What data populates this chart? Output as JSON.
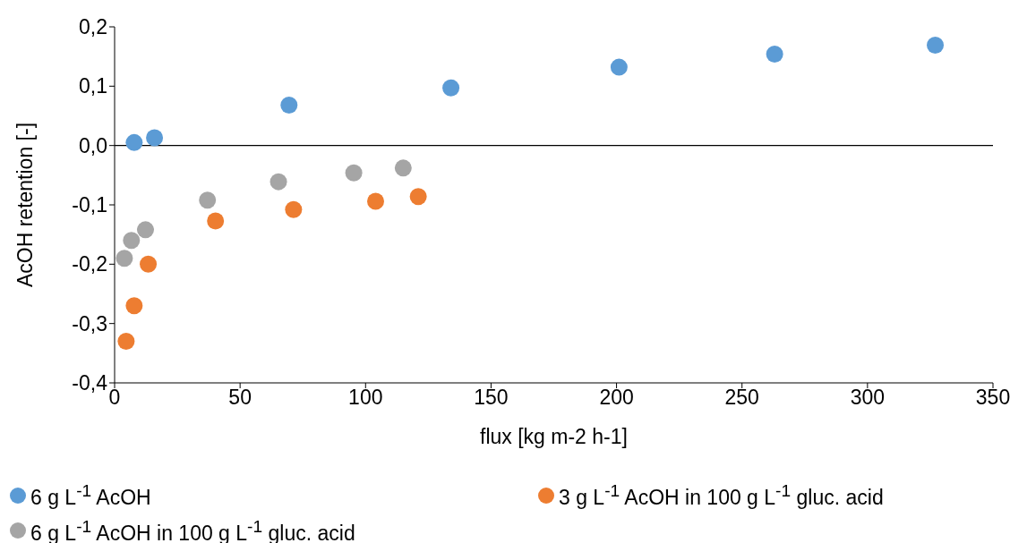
{
  "chart_data": {
    "type": "scatter",
    "xlabel": "flux [kg m-2 h-1]",
    "ylabel": "AcOH retention [-]",
    "xlim": [
      0,
      350
    ],
    "xticks": [
      0,
      50,
      100,
      150,
      200,
      250,
      300,
      350
    ],
    "ylim": [
      -0.4,
      0.2
    ],
    "yticks": [
      {
        "value": -0.4,
        "label": "-0,4"
      },
      {
        "value": -0.3,
        "label": "-0,3"
      },
      {
        "value": -0.2,
        "label": "-0,2"
      },
      {
        "value": -0.1,
        "label": "-0,1"
      },
      {
        "value": 0,
        "label": "0,0"
      },
      {
        "value": 0.1,
        "label": "0,1"
      },
      {
        "value": 0.2,
        "label": "0,2"
      }
    ],
    "grid": false,
    "legend": "bottom",
    "marker": "circle",
    "ref_lines": [
      {
        "axis": "y",
        "value": 0,
        "color": "#000000"
      }
    ],
    "series": [
      {
        "name": "6 g L$^{-1}$  AcOH",
        "color": "#5b9bd5",
        "x": [
          7.8,
          15.9,
          69.5,
          134,
          201,
          263,
          327
        ],
        "values": [
          0.005,
          0.013,
          0.068,
          0.097,
          0.132,
          0.154,
          0.169
        ]
      },
      {
        "name": "3 g L$^{-1}$  AcOH in 100 g L$^{-1}$  gluc. acid",
        "color": "#ed7d31",
        "x": [
          4.6,
          7.8,
          13.4,
          40.2,
          71.3,
          104,
          121
        ],
        "values": [
          -0.33,
          -0.27,
          -0.2,
          -0.127,
          -0.108,
          -0.094,
          -0.086
        ]
      },
      {
        "name": "6 g L$^{-1}$  AcOH in 100 g L$^{-1}$  gluc. acid",
        "color": "#a5a5a5",
        "x": [
          3.9,
          6.7,
          12.3,
          37,
          65.3,
          95.3,
          115
        ],
        "values": [
          -0.19,
          -0.16,
          -0.142,
          -0.092,
          -0.061,
          -0.046,
          -0.038
        ]
      }
    ]
  }
}
